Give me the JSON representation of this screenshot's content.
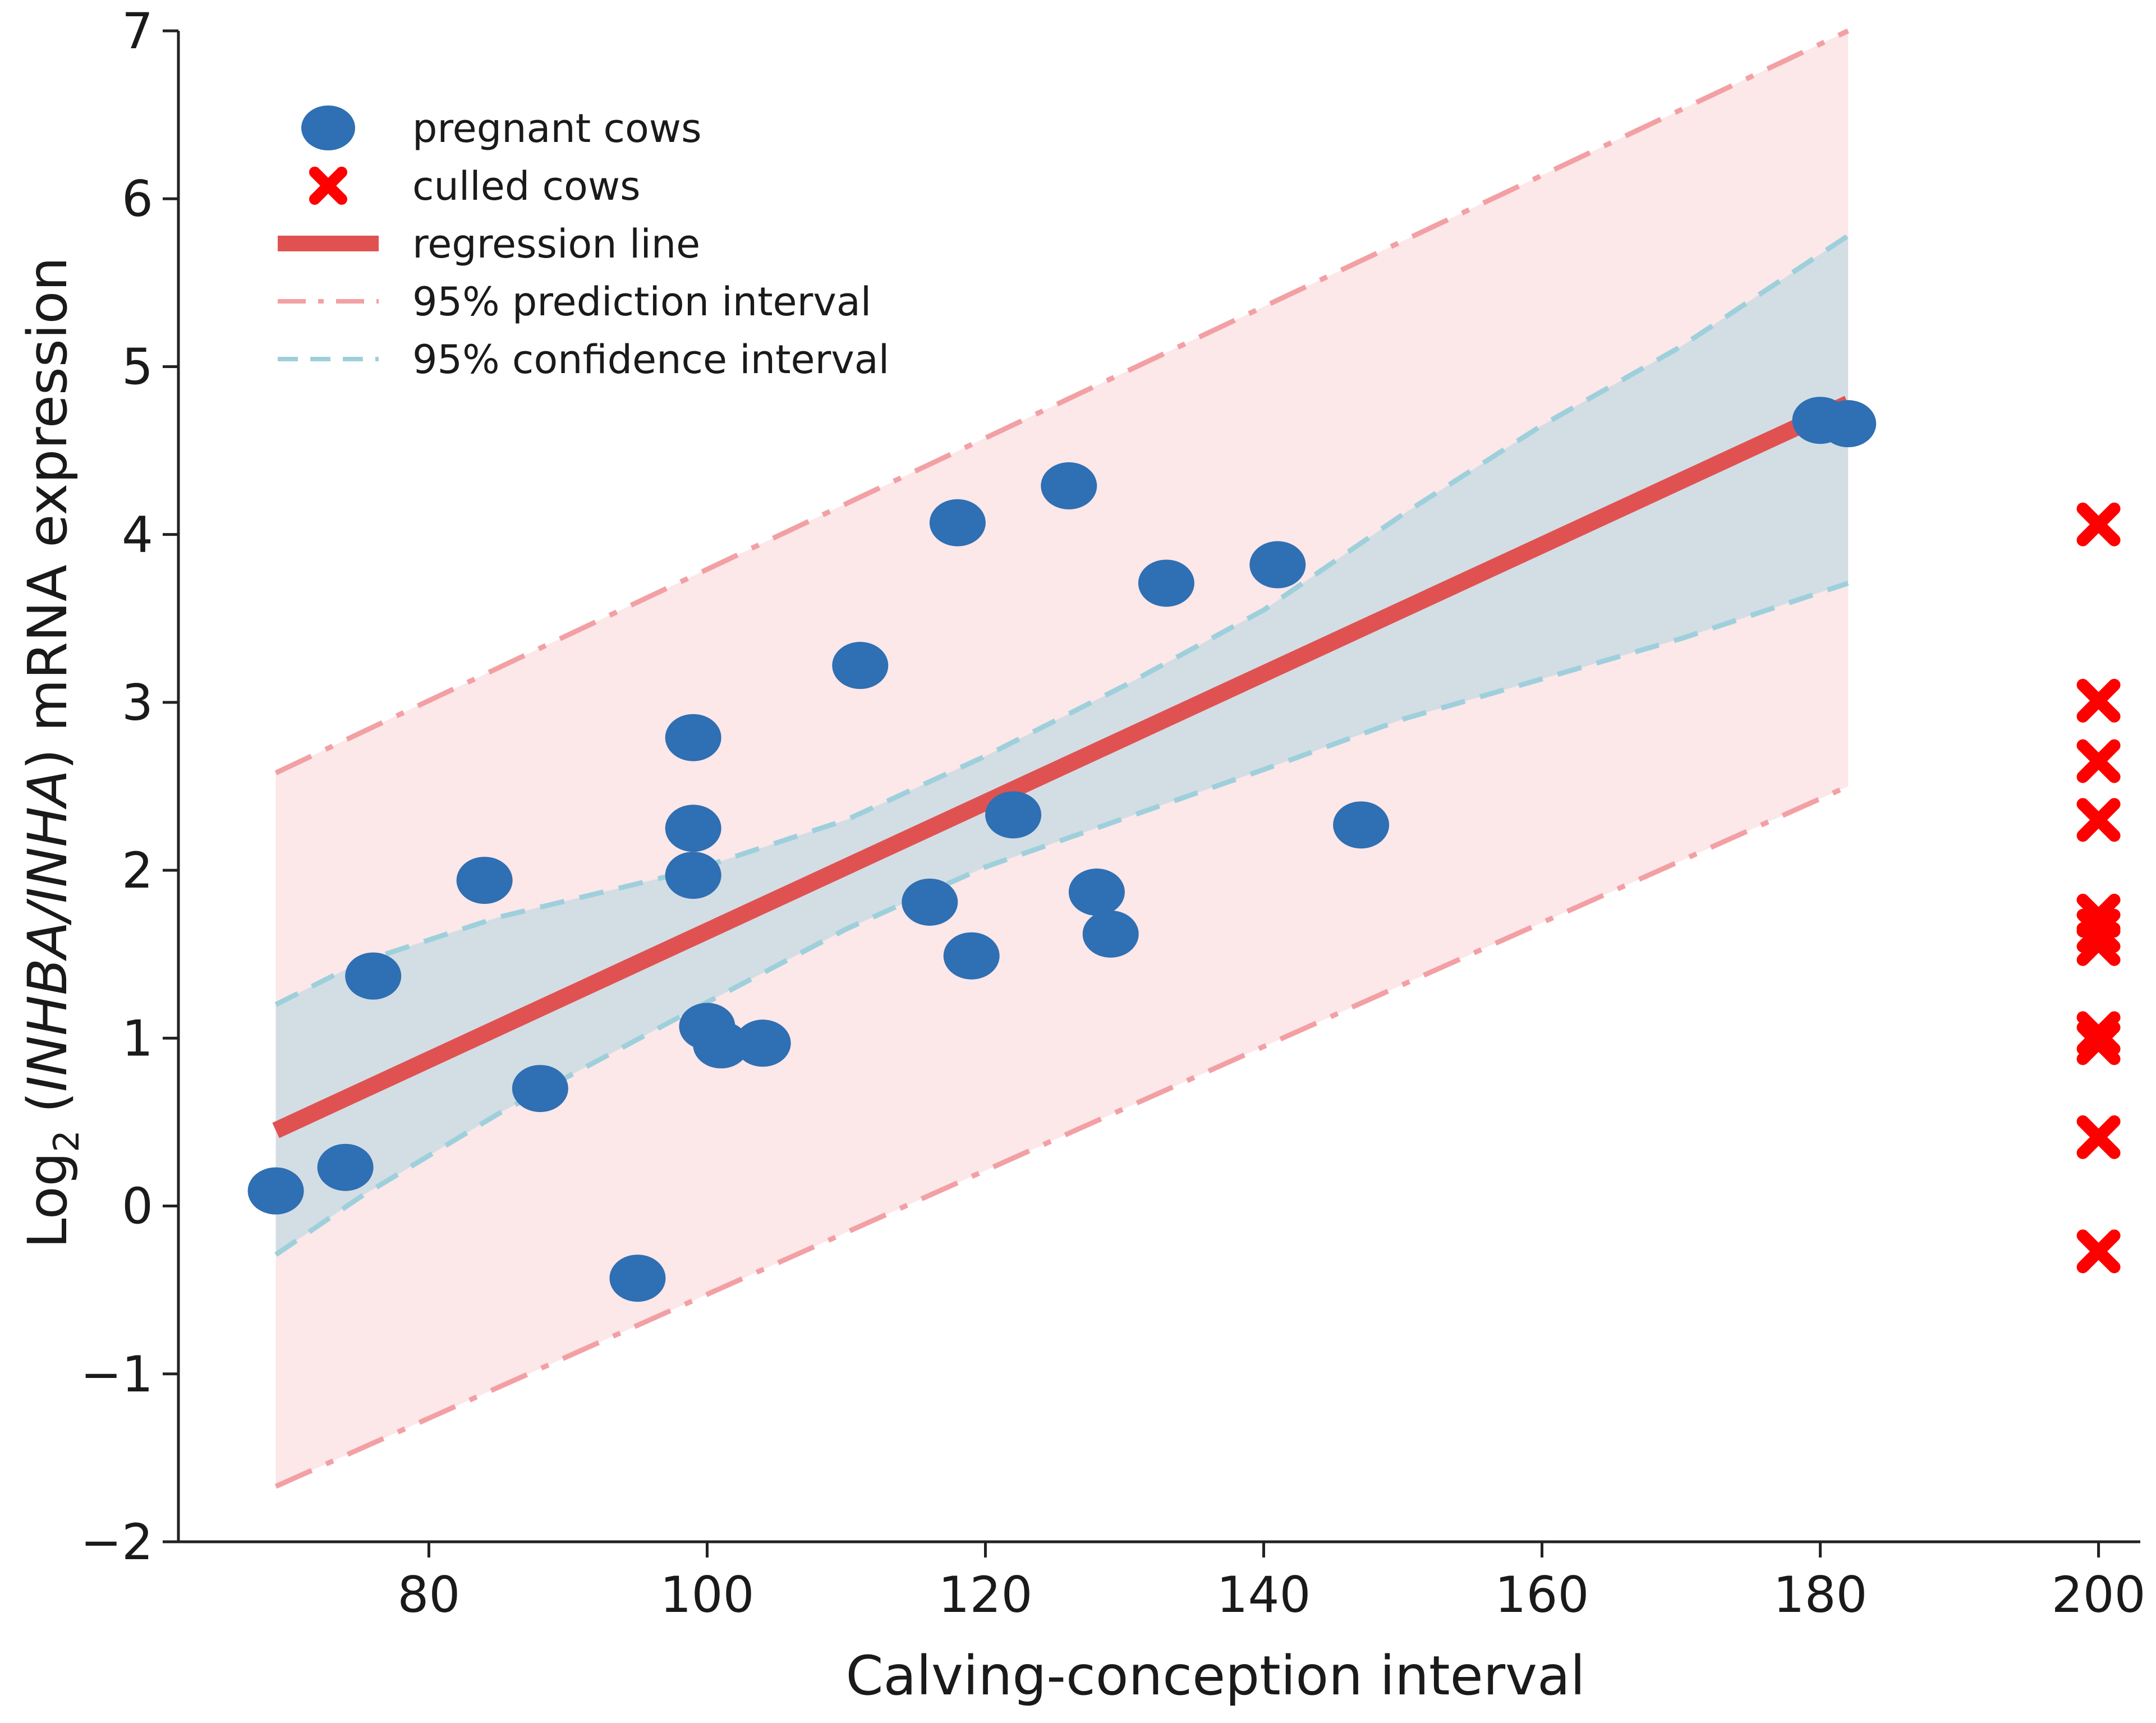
{
  "chart_data": {
    "type": "scatter",
    "title": "",
    "xlabel": "Calving-conception interval",
    "ylabel": {
      "prefix": "Log",
      "subscript": "2",
      "open": " (",
      "italic": "INHBA/INHA",
      "rest": ") mRNA expression"
    },
    "xlim": [
      62,
      203
    ],
    "ylim": [
      -2,
      7
    ],
    "x_ticks": [
      80,
      100,
      120,
      140,
      160,
      180,
      200
    ],
    "y_ticks": [
      -2,
      -1,
      0,
      1,
      2,
      3,
      4,
      5,
      6,
      7
    ],
    "grid": false,
    "legend_position": "top-left",
    "colors": {
      "pregnant": "#2f6fb3",
      "culled": "#ff0000",
      "regression": "#e05252",
      "prediction_line": "#f2a0a4",
      "prediction_fill": "#fce7e9",
      "confidence_line": "#9ed0dc",
      "confidence_fill": "#d3dde4",
      "axis": "#222222"
    },
    "series": [
      {
        "name": "pregnant cows",
        "marker": "ellipse",
        "points": [
          [
            69,
            0.09
          ],
          [
            74,
            0.23
          ],
          [
            76,
            1.37
          ],
          [
            84,
            1.94
          ],
          [
            88,
            0.7
          ],
          [
            95,
            -0.43
          ],
          [
            99,
            2.79
          ],
          [
            99,
            2.25
          ],
          [
            99,
            1.97
          ],
          [
            100,
            1.07
          ],
          [
            101,
            0.96
          ],
          [
            104,
            0.97
          ],
          [
            111,
            3.22
          ],
          [
            116,
            1.81
          ],
          [
            118,
            4.07
          ],
          [
            119,
            1.49
          ],
          [
            122,
            2.33
          ],
          [
            126,
            4.29
          ],
          [
            128,
            1.87
          ],
          [
            129,
            1.62
          ],
          [
            133,
            3.71
          ],
          [
            141,
            3.82
          ],
          [
            147,
            2.27
          ],
          [
            180,
            4.68
          ],
          [
            182,
            4.66
          ]
        ]
      },
      {
        "name": "culled cows",
        "marker": "x",
        "points": [
          [
            200,
            4.06
          ],
          [
            200,
            3.01
          ],
          [
            200,
            2.65
          ],
          [
            200,
            2.3
          ],
          [
            200,
            1.73
          ],
          [
            200,
            1.64
          ],
          [
            200,
            1.56
          ],
          [
            200,
            1.03
          ],
          [
            200,
            0.97
          ],
          [
            200,
            0.41
          ],
          [
            200,
            -0.27
          ]
        ]
      }
    ],
    "regression_line": {
      "name": "regression line",
      "x": [
        69,
        182
      ],
      "y": [
        0.45,
        4.78
      ]
    },
    "prediction_interval": {
      "name": "95% prediction interval",
      "x": [
        69,
        182
      ],
      "lower": [
        -1.67,
        2.5
      ],
      "upper": [
        2.58,
        7.0
      ]
    },
    "confidence_interval": {
      "name": "95% confidence interval",
      "x": [
        69,
        75,
        85,
        99,
        110,
        120,
        130,
        140,
        150,
        160,
        170,
        182
      ],
      "lower": [
        -0.29,
        0.05,
        0.55,
        1.17,
        1.65,
        2.02,
        2.31,
        2.6,
        2.9,
        3.14,
        3.38,
        3.71
      ],
      "upper": [
        1.2,
        1.45,
        1.72,
        2.0,
        2.3,
        2.68,
        3.1,
        3.55,
        4.12,
        4.65,
        5.12,
        5.78
      ]
    },
    "legend": [
      {
        "label": "pregnant cows",
        "kind": "ellipse"
      },
      {
        "label": "culled cows",
        "kind": "x"
      },
      {
        "label": "regression line",
        "kind": "regression"
      },
      {
        "label": "95% prediction interval",
        "kind": "prediction"
      },
      {
        "label": "95% confidence interval",
        "kind": "confidence"
      }
    ]
  }
}
